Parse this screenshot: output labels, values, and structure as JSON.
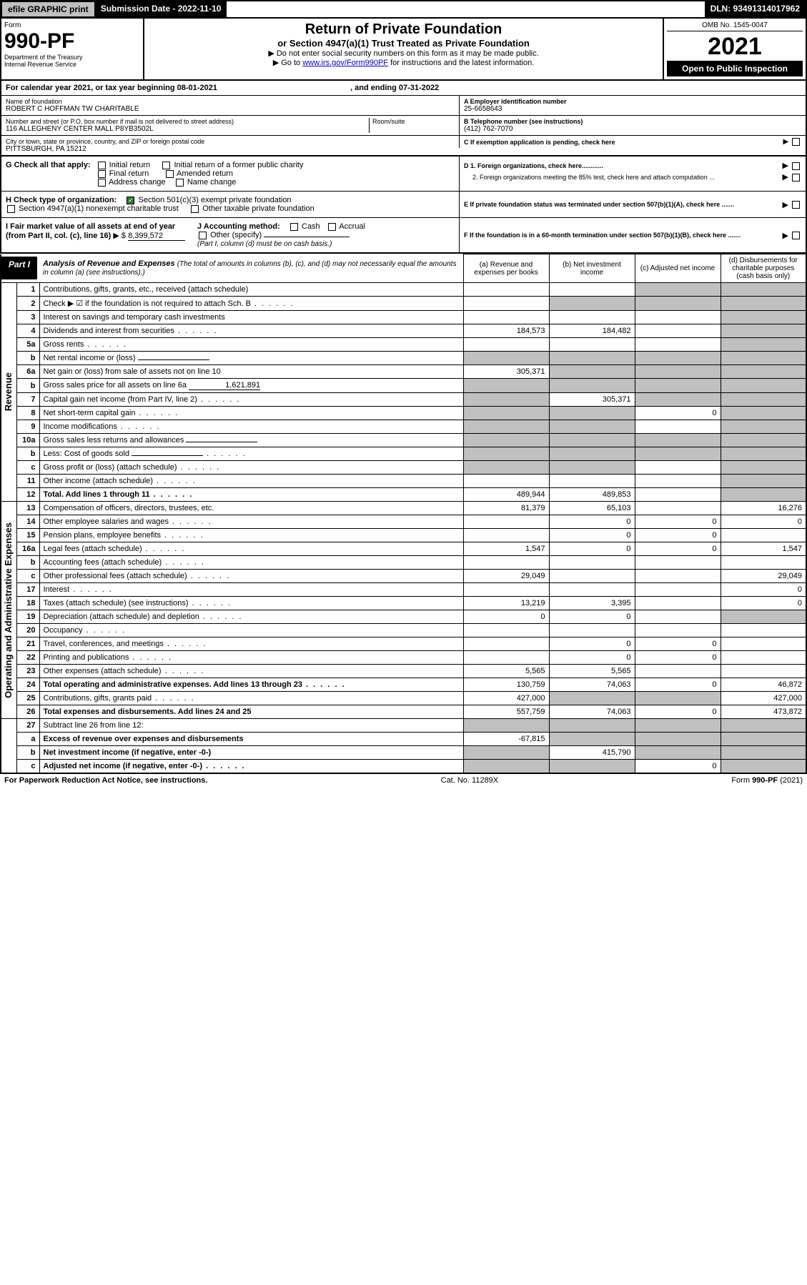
{
  "topbar": {
    "efile": "efile GRAPHIC print",
    "submission": "Submission Date - 2022-11-10",
    "dln": "DLN: 93491314017962"
  },
  "header": {
    "form_label": "Form",
    "form_num": "990-PF",
    "dept": "Department of the Treasury",
    "irs": "Internal Revenue Service",
    "title": "Return of Private Foundation",
    "subtitle": "or Section 4947(a)(1) Trust Treated as Private Foundation",
    "instr1": "▶ Do not enter social security numbers on this form as it may be made public.",
    "instr2_prefix": "▶ Go to ",
    "instr2_link": "www.irs.gov/Form990PF",
    "instr2_suffix": " for instructions and the latest information.",
    "omb": "OMB No. 1545-0047",
    "year": "2021",
    "open": "Open to Public Inspection"
  },
  "calyear": {
    "text_a": "For calendar year 2021, or tax year beginning ",
    "date_a": "08-01-2021",
    "text_b": " , and ending ",
    "date_b": "07-31-2022"
  },
  "nameblock": {
    "name_label": "Name of foundation",
    "name": "ROBERT C HOFFMAN TW CHARITABLE",
    "addr_label": "Number and street (or P.O. box number if mail is not delivered to street address)",
    "addr": "116 ALLEGHENY CENTER MALL P8YB3502L",
    "room_label": "Room/suite",
    "room": "",
    "city_label": "City or town, state or province, country, and ZIP or foreign postal code",
    "city": "PITTSBURGH, PA  15212",
    "ein_label": "A Employer identification number",
    "ein": "25-6658643",
    "tel_label": "B Telephone number (see instructions)",
    "tel": "(412) 762-7070",
    "c_label": "C If exemption application is pending, check here"
  },
  "checks": {
    "g_label": "G Check all that apply:",
    "g_opts": [
      "Initial return",
      "Initial return of a former public charity",
      "Final return",
      "Amended return",
      "Address change",
      "Name change"
    ],
    "h_label": "H Check type of organization:",
    "h_opt1": "Section 501(c)(3) exempt private foundation",
    "h_opt2": "Section 4947(a)(1) nonexempt charitable trust",
    "h_opt3": "Other taxable private foundation",
    "i_label": "I Fair market value of all assets at end of year (from Part II, col. (c), line 16)",
    "i_prefix": "▶ $",
    "i_val": "8,399,572",
    "j_label": "J Accounting method:",
    "j_opts": [
      "Cash",
      "Accrual",
      "Other (specify)"
    ],
    "j_note": "(Part I, column (d) must be on cash basis.)",
    "d_label": "D 1. Foreign organizations, check here............",
    "d2_label": "2. Foreign organizations meeting the 85% test, check here and attach computation ...",
    "e_label": "E If private foundation status was terminated under section 507(b)(1)(A), check here .......",
    "f_label": "F If the foundation is in a 60-month termination under section 507(b)(1)(B), check here ......."
  },
  "part1": {
    "label": "Part I",
    "title": "Analysis of Revenue and Expenses",
    "desc": " (The total of amounts in columns (b), (c), and (d) may not necessarily equal the amounts in column (a) (see instructions).)",
    "col_a": "(a) Revenue and expenses per books",
    "col_b": "(b) Net investment income",
    "col_c": "(c) Adjusted net income",
    "col_d": "(d) Disbursements for charitable purposes (cash basis only)"
  },
  "sections": {
    "revenue": "Revenue",
    "expenses": "Operating and Administrative Expenses"
  },
  "rows": [
    {
      "n": "1",
      "d": "Contributions, gifts, grants, etc., received (attach schedule)",
      "a": "",
      "b": "",
      "c": "",
      "dd": "",
      "bgrey": false,
      "cgrey": true,
      "dgrey": true
    },
    {
      "n": "2",
      "d": "Check ▶ ☑ if the foundation is not required to attach Sch. B",
      "a": "",
      "b": "",
      "c": "",
      "dd": "",
      "bgrey": true,
      "cgrey": true,
      "dgrey": true,
      "dots": true
    },
    {
      "n": "3",
      "d": "Interest on savings and temporary cash investments",
      "a": "",
      "b": "",
      "c": "",
      "dd": "",
      "dgrey": true
    },
    {
      "n": "4",
      "d": "Dividends and interest from securities",
      "a": "184,573",
      "b": "184,482",
      "c": "",
      "dd": "",
      "dgrey": true,
      "dots": true
    },
    {
      "n": "5a",
      "d": "Gross rents",
      "a": "",
      "b": "",
      "c": "",
      "dd": "",
      "dgrey": true,
      "dots": true
    },
    {
      "n": "b",
      "d": "Net rental income or (loss)",
      "a": "",
      "b": "",
      "c": "",
      "dd": "",
      "agrey": true,
      "bgrey": true,
      "cgrey": true,
      "dgrey": true,
      "inline": true
    },
    {
      "n": "6a",
      "d": "Net gain or (loss) from sale of assets not on line 10",
      "a": "305,371",
      "b": "",
      "c": "",
      "dd": "",
      "bgrey": true,
      "cgrey": true,
      "dgrey": true
    },
    {
      "n": "b",
      "d": "Gross sales price for all assets on line 6a",
      "a": "",
      "b": "",
      "c": "",
      "dd": "",
      "agrey": true,
      "bgrey": true,
      "cgrey": true,
      "dgrey": true,
      "inline": true,
      "inlineval": "1,621,891"
    },
    {
      "n": "7",
      "d": "Capital gain net income (from Part IV, line 2)",
      "a": "",
      "b": "305,371",
      "c": "",
      "dd": "",
      "agrey": true,
      "cgrey": true,
      "dgrey": true,
      "dots": true
    },
    {
      "n": "8",
      "d": "Net short-term capital gain",
      "a": "",
      "b": "",
      "c": "0",
      "dd": "",
      "agrey": true,
      "bgrey": true,
      "dgrey": true,
      "dots": true
    },
    {
      "n": "9",
      "d": "Income modifications",
      "a": "",
      "b": "",
      "c": "",
      "dd": "",
      "agrey": true,
      "bgrey": true,
      "dgrey": true,
      "dots": true
    },
    {
      "n": "10a",
      "d": "Gross sales less returns and allowances",
      "a": "",
      "b": "",
      "c": "",
      "dd": "",
      "agrey": true,
      "bgrey": true,
      "cgrey": true,
      "dgrey": true,
      "inline": true
    },
    {
      "n": "b",
      "d": "Less: Cost of goods sold",
      "a": "",
      "b": "",
      "c": "",
      "dd": "",
      "agrey": true,
      "bgrey": true,
      "cgrey": true,
      "dgrey": true,
      "inline": true,
      "dots": true
    },
    {
      "n": "c",
      "d": "Gross profit or (loss) (attach schedule)",
      "a": "",
      "b": "",
      "c": "",
      "dd": "",
      "agrey": true,
      "bgrey": true,
      "dgrey": true,
      "dots": true
    },
    {
      "n": "11",
      "d": "Other income (attach schedule)",
      "a": "",
      "b": "",
      "c": "",
      "dd": "",
      "dgrey": true,
      "dots": true
    },
    {
      "n": "12",
      "d": "Total. Add lines 1 through 11",
      "a": "489,944",
      "b": "489,853",
      "c": "",
      "dd": "",
      "dgrey": true,
      "dots": true,
      "bold": true
    }
  ],
  "exp_rows": [
    {
      "n": "13",
      "d": "Compensation of officers, directors, trustees, etc.",
      "a": "81,379",
      "b": "65,103",
      "c": "",
      "dd": "16,276"
    },
    {
      "n": "14",
      "d": "Other employee salaries and wages",
      "a": "",
      "b": "0",
      "c": "0",
      "dd": "0",
      "dots": true
    },
    {
      "n": "15",
      "d": "Pension plans, employee benefits",
      "a": "",
      "b": "0",
      "c": "0",
      "dd": "",
      "dots": true
    },
    {
      "n": "16a",
      "d": "Legal fees (attach schedule)",
      "a": "1,547",
      "b": "0",
      "c": "0",
      "dd": "1,547",
      "dots": true
    },
    {
      "n": "b",
      "d": "Accounting fees (attach schedule)",
      "a": "",
      "b": "",
      "c": "",
      "dd": "",
      "dots": true
    },
    {
      "n": "c",
      "d": "Other professional fees (attach schedule)",
      "a": "29,049",
      "b": "",
      "c": "",
      "dd": "29,049",
      "dots": true
    },
    {
      "n": "17",
      "d": "Interest",
      "a": "",
      "b": "",
      "c": "",
      "dd": "0",
      "dots": true
    },
    {
      "n": "18",
      "d": "Taxes (attach schedule) (see instructions)",
      "a": "13,219",
      "b": "3,395",
      "c": "",
      "dd": "0",
      "dots": true
    },
    {
      "n": "19",
      "d": "Depreciation (attach schedule) and depletion",
      "a": "0",
      "b": "0",
      "c": "",
      "dd": "",
      "dgrey": true,
      "dots": true
    },
    {
      "n": "20",
      "d": "Occupancy",
      "a": "",
      "b": "",
      "c": "",
      "dd": "",
      "dots": true
    },
    {
      "n": "21",
      "d": "Travel, conferences, and meetings",
      "a": "",
      "b": "0",
      "c": "0",
      "dd": "",
      "dots": true
    },
    {
      "n": "22",
      "d": "Printing and publications",
      "a": "",
      "b": "0",
      "c": "0",
      "dd": "",
      "dots": true
    },
    {
      "n": "23",
      "d": "Other expenses (attach schedule)",
      "a": "5,565",
      "b": "5,565",
      "c": "",
      "dd": "",
      "dots": true
    },
    {
      "n": "24",
      "d": "Total operating and administrative expenses. Add lines 13 through 23",
      "a": "130,759",
      "b": "74,063",
      "c": "0",
      "dd": "46,872",
      "dots": true,
      "bold": true
    },
    {
      "n": "25",
      "d": "Contributions, gifts, grants paid",
      "a": "427,000",
      "b": "",
      "c": "",
      "dd": "427,000",
      "bgrey": true,
      "cgrey": true,
      "dots": true
    },
    {
      "n": "26",
      "d": "Total expenses and disbursements. Add lines 24 and 25",
      "a": "557,759",
      "b": "74,063",
      "c": "0",
      "dd": "473,872",
      "bold": true
    }
  ],
  "bottom_rows": [
    {
      "n": "27",
      "d": "Subtract line 26 from line 12:",
      "a": "",
      "b": "",
      "c": "",
      "dd": "",
      "agrey": true,
      "bgrey": true,
      "cgrey": true,
      "dgrey": true
    },
    {
      "n": "a",
      "d": "Excess of revenue over expenses and disbursements",
      "a": "-67,815",
      "b": "",
      "c": "",
      "dd": "",
      "bgrey": true,
      "cgrey": true,
      "dgrey": true,
      "bold": true
    },
    {
      "n": "b",
      "d": "Net investment income (if negative, enter -0-)",
      "a": "",
      "b": "415,790",
      "c": "",
      "dd": "",
      "agrey": true,
      "cgrey": true,
      "dgrey": true,
      "bold": true
    },
    {
      "n": "c",
      "d": "Adjusted net income (if negative, enter -0-)",
      "a": "",
      "b": "",
      "c": "0",
      "dd": "",
      "agrey": true,
      "bgrey": true,
      "dgrey": true,
      "bold": true,
      "dots": true
    }
  ],
  "footer": {
    "left": "For Paperwork Reduction Act Notice, see instructions.",
    "mid": "Cat. No. 11289X",
    "right": "Form 990-PF (2021)"
  }
}
